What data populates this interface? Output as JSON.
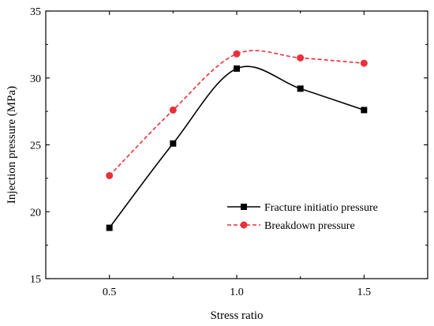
{
  "chart_data": {
    "type": "line",
    "title": "",
    "xlabel": "Stress ratio",
    "ylabel": "Injection pressure (MPa)",
    "xlim": [
      0.25,
      1.75
    ],
    "ylim": [
      15,
      35
    ],
    "xticks": [
      0.5,
      0.75,
      1.0,
      1.25,
      1.5
    ],
    "xtick_labels": [
      "0.5",
      "",
      "1.0",
      "",
      "1.5"
    ],
    "yticks": [
      15,
      20,
      25,
      30,
      35
    ],
    "ytick_labels": [
      "15",
      "20",
      "25",
      "30",
      "35"
    ],
    "grid": false,
    "legend_position": "lower-right",
    "series": [
      {
        "name": "Fracture initiatio pressure",
        "color": "#000000",
        "line_style": "solid",
        "marker": "square",
        "x": [
          0.5,
          0.75,
          1.0,
          1.25,
          1.5
        ],
        "y": [
          18.8,
          25.1,
          30.7,
          29.2,
          27.6
        ]
      },
      {
        "name": "Breakdown pressure",
        "color": "#e8303a",
        "line_style": "dashed",
        "marker": "circle",
        "x": [
          0.5,
          0.75,
          1.0,
          1.25,
          1.5
        ],
        "y": [
          22.7,
          27.6,
          31.8,
          31.5,
          31.1
        ]
      }
    ]
  }
}
